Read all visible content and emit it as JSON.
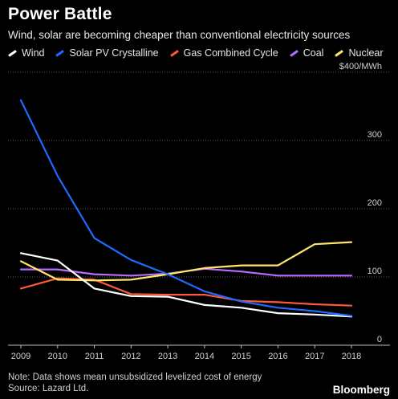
{
  "header": {
    "title": "Power Battle",
    "subtitle": "Wind, solar are becoming cheaper than conventional electricity sources"
  },
  "footer": {
    "note": "Note: Data shows mean unsubsidized levelized cost of energy",
    "source": "Source: Lazard Ltd.",
    "brand": "Bloomberg"
  },
  "chart_data": {
    "type": "line",
    "title": "Power Battle",
    "subtitle": "Wind, solar are becoming cheaper than conventional electricity sources",
    "x": [
      "2009",
      "2010",
      "2011",
      "2012",
      "2013",
      "2014",
      "2015",
      "2016",
      "2017",
      "2018"
    ],
    "ylim": [
      0,
      400
    ],
    "yticks": [
      0,
      100,
      200,
      300,
      400
    ],
    "ytick_labels": [
      "0",
      "100",
      "200",
      "300",
      "$400/MWh"
    ],
    "grid": true,
    "legend_position": "top",
    "series": [
      {
        "name": "Wind",
        "color": "#ffffff",
        "values": [
          135,
          124,
          83,
          72,
          71,
          59,
          55,
          47,
          45,
          42
        ]
      },
      {
        "name": "Solar PV Crystalline",
        "color": "#1f6bff",
        "values": [
          359,
          248,
          157,
          125,
          104,
          79,
          64,
          55,
          50,
          43
        ]
      },
      {
        "name": "Gas Combined Cycle",
        "color": "#ff5a36",
        "values": [
          83,
          98,
          96,
          75,
          74,
          74,
          65,
          63,
          60,
          58
        ]
      },
      {
        "name": "Coal",
        "color": "#b76cff",
        "values": [
          111,
          111,
          104,
          102,
          105,
          112,
          108,
          102,
          102,
          102
        ]
      },
      {
        "name": "Nuclear",
        "color": "#ffe66a",
        "values": [
          123,
          96,
          95,
          96,
          104,
          113,
          117,
          117,
          148,
          151
        ]
      }
    ]
  }
}
